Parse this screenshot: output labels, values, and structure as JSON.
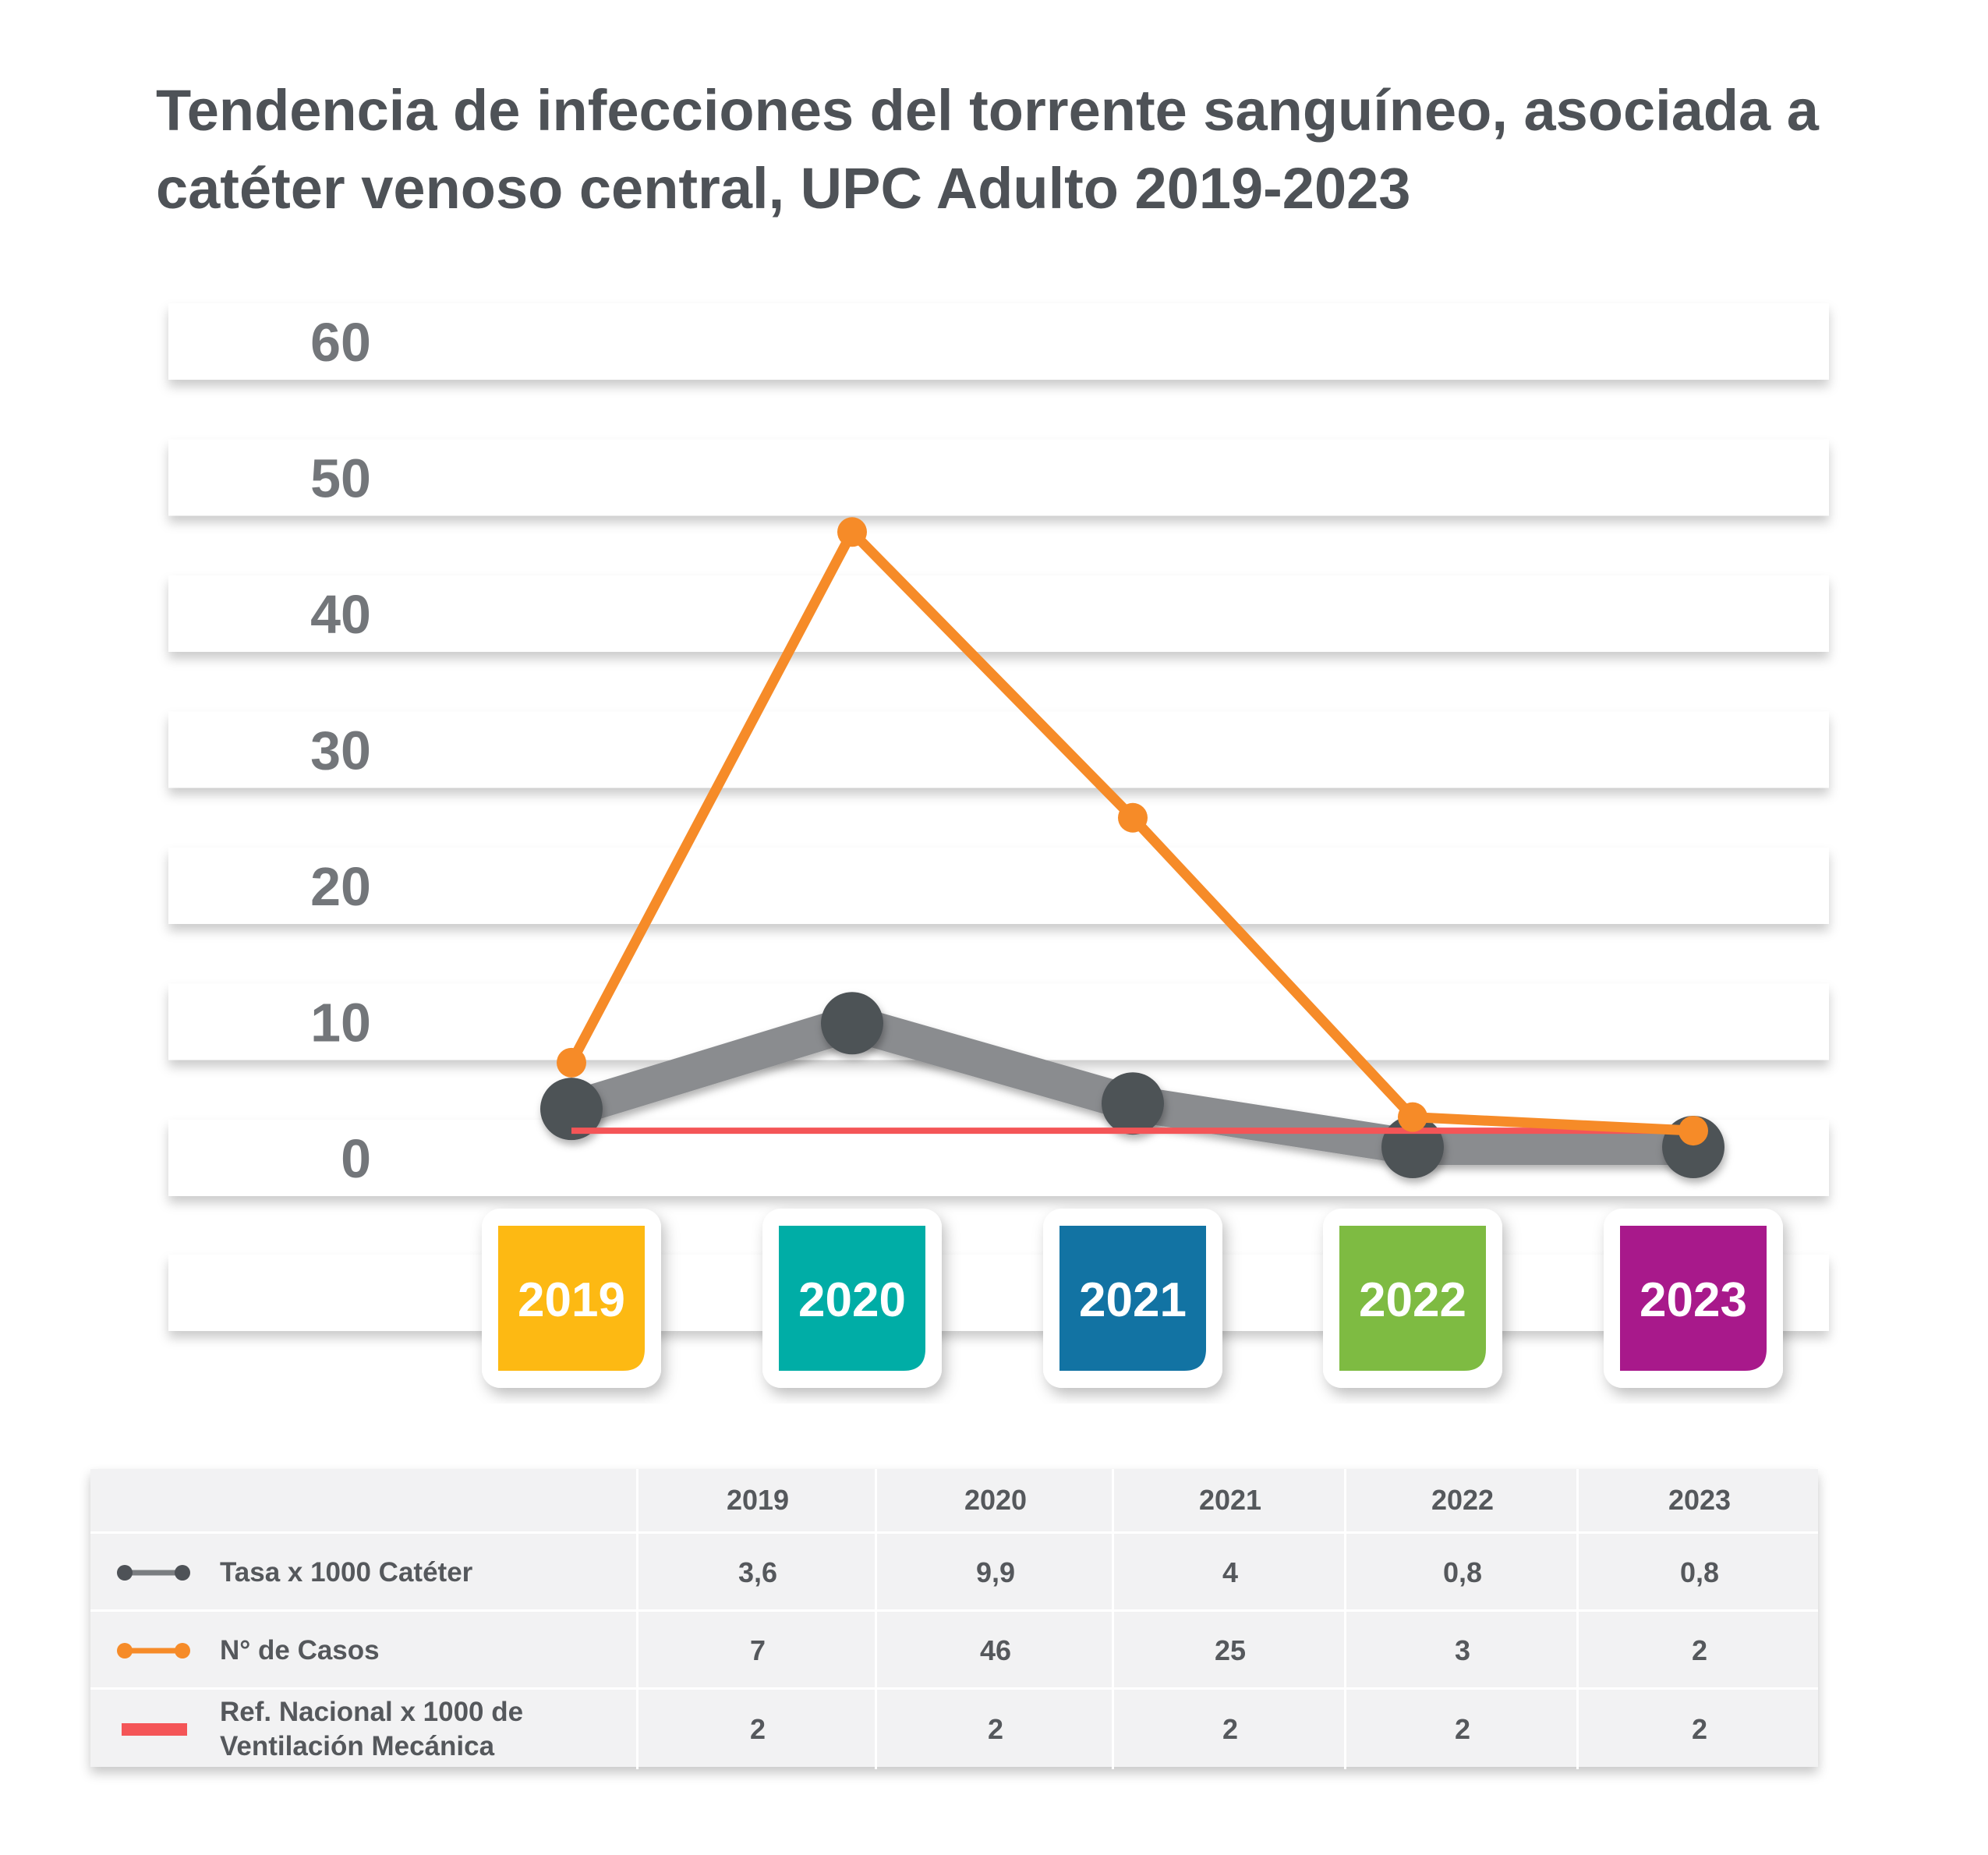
{
  "title": "Tendencia de infecciones del torrente sanguíneo, asociada a catéter venoso central, UPC Adulto 2019-2023",
  "chart_data": {
    "type": "line",
    "title": "Tendencia de infecciones del torrente sanguíneo, asociada a catéter venoso central, UPC Adulto 2019-2023",
    "categories": [
      "2019",
      "2020",
      "2021",
      "2022",
      "2023"
    ],
    "category_colors": [
      "#fdb913",
      "#00ada6",
      "#1273a3",
      "#7ebb42",
      "#a8198b"
    ],
    "yticks": [
      "60",
      "50",
      "40",
      "30",
      "20",
      "10",
      "0"
    ],
    "ylim": [
      0,
      60
    ],
    "grid": true,
    "series": [
      {
        "name": "Tasa x 1000 Catéter",
        "values": [
          3.6,
          9.9,
          4,
          0.8,
          0.8
        ],
        "color": "#4e5257"
      },
      {
        "name": "N° de Casos",
        "values": [
          7,
          46,
          25,
          3,
          2
        ],
        "color": "#f68b28"
      },
      {
        "name": "Ref. Nacional x 1000 de Ventilación Mecánica",
        "values": [
          2,
          2,
          2,
          2,
          2
        ],
        "color": "#f45557"
      }
    ]
  },
  "table": {
    "headers": [
      "2019",
      "2020",
      "2021",
      "2022",
      "2023"
    ],
    "rows": [
      {
        "label": "Tasa x 1000 Catéter",
        "values": [
          "3,6",
          "9,9",
          "4",
          "0,8",
          "0,8"
        ],
        "icon": "dark-line-dots"
      },
      {
        "label": "N° de Casos",
        "values": [
          "7",
          "46",
          "25",
          "3",
          "2"
        ],
        "icon": "orange-line-dots"
      },
      {
        "label_line1": "Ref. Nacional x 1000 de",
        "label_line2": "Ventilación Mecánica",
        "values": [
          "2",
          "2",
          "2",
          "2",
          "2"
        ],
        "icon": "red-line"
      }
    ]
  }
}
